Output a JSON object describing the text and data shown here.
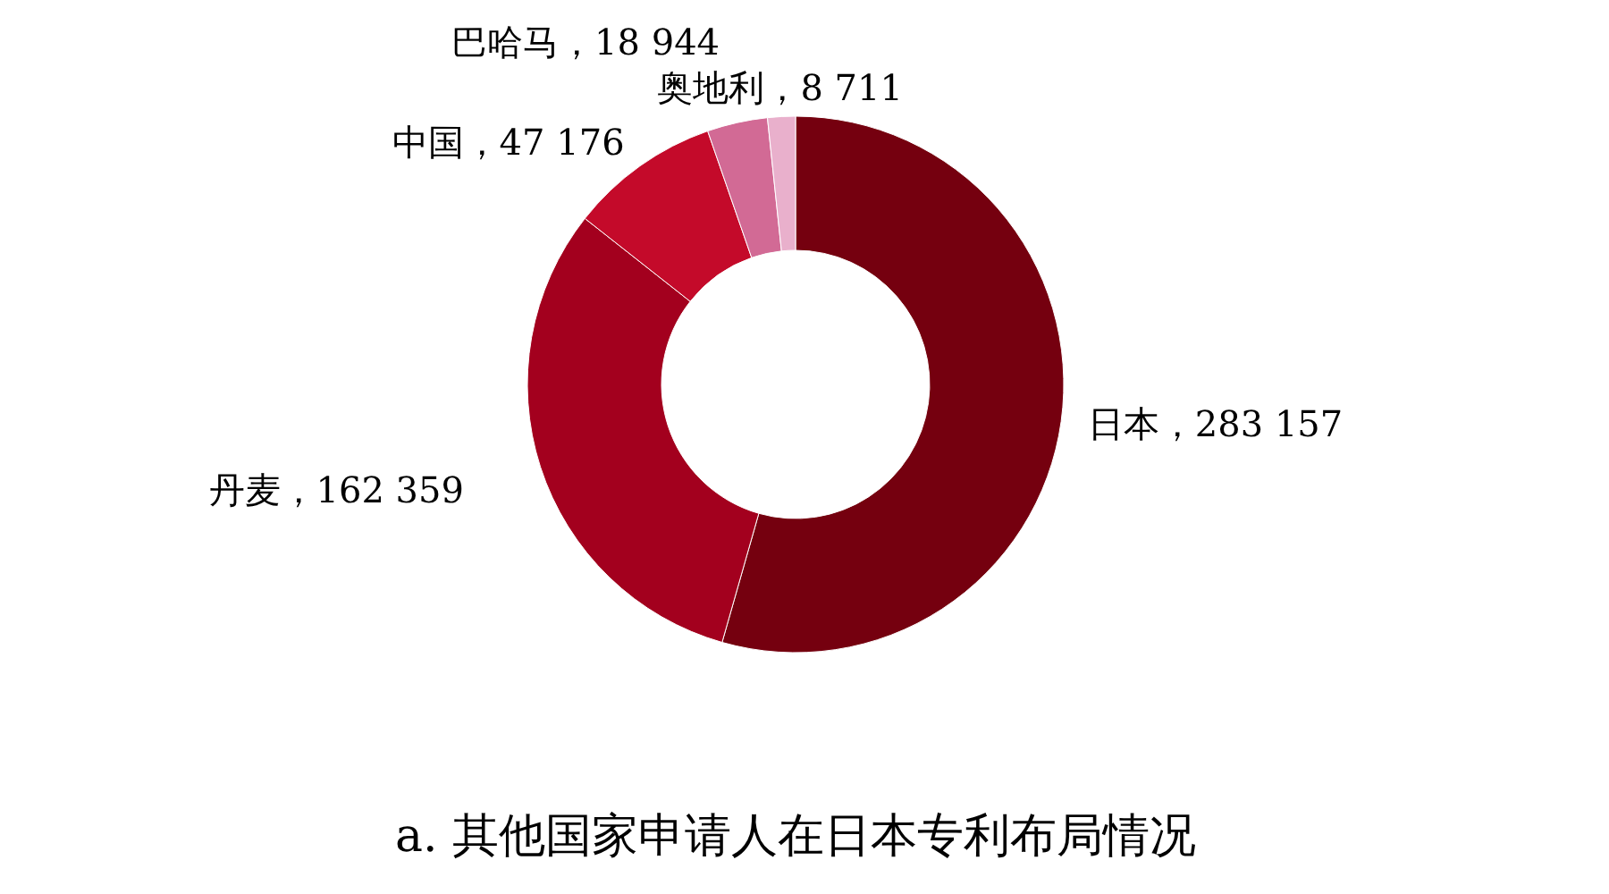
{
  "chart_data": {
    "type": "donut",
    "title": "a. 其他国家申请人在日本专利布局情况",
    "categories": [
      "日本",
      "丹麦",
      "中国",
      "巴哈马",
      "奥地利"
    ],
    "values": [
      283157,
      162359,
      47176,
      18944,
      8711
    ],
    "colors": [
      "#75000f",
      "#a3001e",
      "#c40a2a",
      "#d26a95",
      "#e9b0cc"
    ],
    "value_labels": [
      "283 157",
      "162 359",
      "47 176",
      "18 944",
      "8 711"
    ]
  }
}
